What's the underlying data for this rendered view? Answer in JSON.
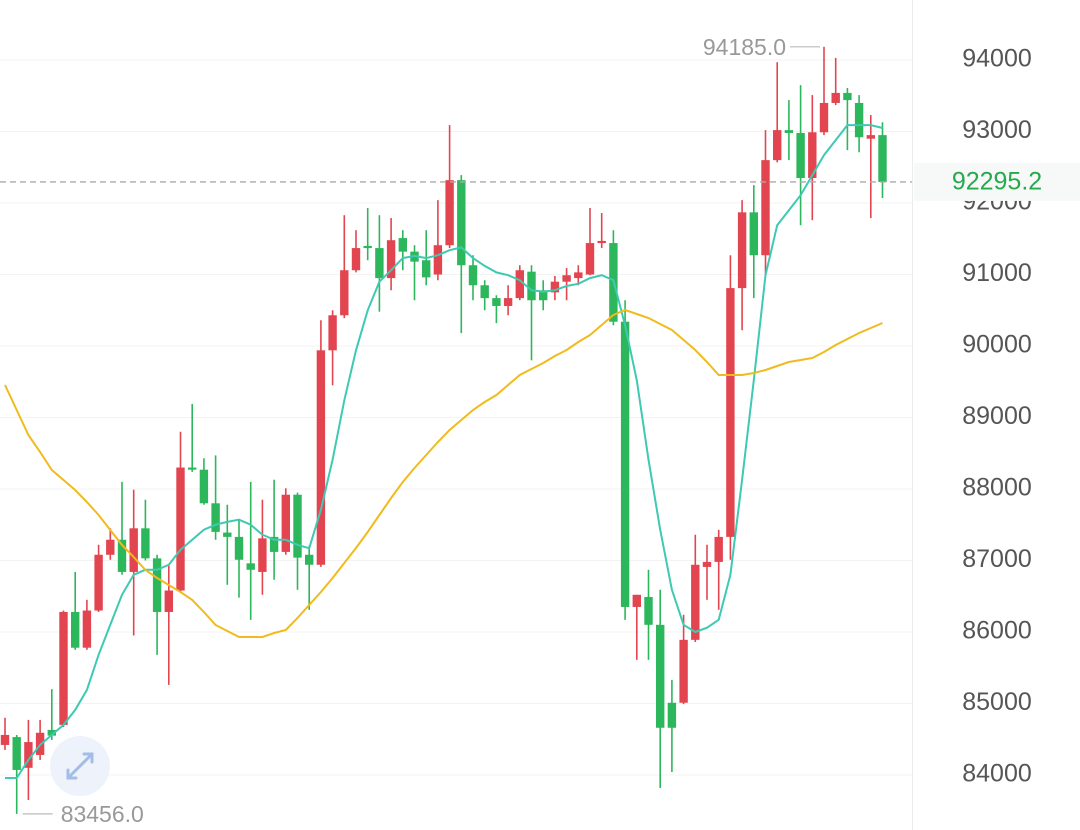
{
  "chart_data": {
    "type": "candlestick",
    "ylim": [
      83230,
      94840
    ],
    "yticks": [
      84000,
      85000,
      86000,
      87000,
      88000,
      89000,
      90000,
      91000,
      92000,
      93000,
      94000
    ],
    "grid": true,
    "up_color": "#e2454f",
    "down_color": "#2db75c",
    "open": [
      84420,
      84530,
      84100,
      84280,
      84630,
      84700,
      86280,
      85780,
      86300,
      87080,
      87290,
      86840,
      87450,
      87030,
      86280,
      86580,
      88300,
      88270,
      87800,
      87390,
      87330,
      86960,
      86840,
      87330,
      87120,
      87920,
      87080,
      86940,
      89940,
      90430,
      91060,
      91400,
      91370,
      90950,
      91510,
      91320,
      91200,
      91000,
      91410,
      92320,
      91130,
      90850,
      90670,
      90560,
      90670,
      91040,
      90780,
      90750,
      90900,
      90950,
      91000,
      91440,
      91440,
      90340,
      86350,
      86490,
      86100,
      85010,
      85010,
      85890,
      86910,
      86980,
      87330,
      90810,
      91870,
      91270,
      92600,
      93020,
      92980,
      92350,
      92990,
      93400,
      93540,
      93400,
      92900,
      92950
    ],
    "high": [
      84800,
      84560,
      84770,
      84770,
      85200,
      86300,
      86840,
      86450,
      87220,
      87450,
      88100,
      87990,
      87850,
      87080,
      86930,
      88800,
      89190,
      88430,
      88470,
      87780,
      87570,
      88100,
      87850,
      88130,
      88010,
      87950,
      87210,
      90360,
      90500,
      91830,
      91620,
      91930,
      91830,
      91790,
      91620,
      91410,
      91620,
      92040,
      93090,
      92390,
      91270,
      90920,
      90710,
      90850,
      91130,
      91130,
      90920,
      90980,
      91090,
      91130,
      91930,
      91860,
      91620,
      90640,
      86520,
      86870,
      86590,
      85330,
      86240,
      87360,
      87220,
      87430,
      91270,
      92040,
      92250,
      93020,
      93970,
      93440,
      93650,
      93510,
      94185,
      94030,
      93610,
      93510,
      93230,
      93130
    ],
    "low": [
      84350,
      83456,
      83650,
      84210,
      84490,
      84670,
      85750,
      85750,
      86280,
      87010,
      86800,
      85950,
      87000,
      85680,
      85260,
      86560,
      88240,
      87780,
      87290,
      86660,
      86480,
      86170,
      86520,
      86730,
      87080,
      86590,
      86310,
      86910,
      89450,
      90390,
      91030,
      91200,
      90480,
      90780,
      91060,
      90640,
      90850,
      90920,
      91370,
      90180,
      90640,
      90500,
      90320,
      90430,
      90640,
      89800,
      90500,
      90640,
      90640,
      90850,
      90990,
      91370,
      90290,
      86170,
      85610,
      85610,
      83820,
      84040,
      84990,
      85860,
      86450,
      86310,
      87010,
      90220,
      90670,
      91000,
      92570,
      92600,
      91690,
      91760,
      92950,
      93370,
      92740,
      92710,
      91790,
      92070
    ],
    "close": [
      84560,
      84070,
      84460,
      84590,
      84550,
      86280,
      85780,
      86300,
      87080,
      87290,
      86840,
      87450,
      87030,
      86280,
      86580,
      88300,
      88270,
      87800,
      87400,
      87330,
      87010,
      86870,
      87310,
      87120,
      87920,
      87040,
      86940,
      89940,
      90430,
      91060,
      91370,
      91370,
      90950,
      91480,
      91320,
      91180,
      90960,
      91410,
      92320,
      91130,
      90850,
      90670,
      90560,
      90670,
      91060,
      90640,
      90640,
      90900,
      90990,
      91030,
      91440,
      91470,
      90340,
      86350,
      86520,
      86100,
      84660,
      84660,
      85890,
      86940,
      86980,
      87330,
      90810,
      91870,
      91270,
      92600,
      93020,
      92980,
      92350,
      92990,
      93400,
      93540,
      93440,
      92920,
      92950,
      92295.2
    ],
    "lines": [
      {
        "color": "#3ec9b2",
        "values": [
          83958,
          83958,
          84210,
          84420,
          84560,
          84700,
          84910,
          85190,
          85680,
          86100,
          86520,
          86800,
          86870,
          86870,
          86940,
          87150,
          87290,
          87430,
          87500,
          87540,
          87570,
          87500,
          87360,
          87290,
          87290,
          87220,
          87170,
          87710,
          88410,
          89240,
          89940,
          90500,
          90900,
          91060,
          91230,
          91260,
          91230,
          91270,
          91340,
          91380,
          91230,
          91120,
          91030,
          90990,
          90920,
          90780,
          90760,
          90780,
          90840,
          90870,
          90950,
          90990,
          90920,
          90290,
          89520,
          88410,
          87430,
          86590,
          86100,
          86000,
          86060,
          86170,
          86800,
          88130,
          89520,
          90990,
          91690,
          91900,
          92110,
          92390,
          92670,
          92880,
          93090,
          93090,
          93090,
          93050
        ]
      },
      {
        "color": "#f0bb1c",
        "values": [
          89455,
          89105,
          88755,
          88517,
          88266,
          88126,
          87986,
          87818,
          87636,
          87427,
          87217,
          87049,
          86867,
          86755,
          86657,
          86559,
          86448,
          86280,
          86098,
          86014,
          85930,
          85930,
          85930,
          85986,
          86028,
          86196,
          86378,
          86559,
          86755,
          86965,
          87175,
          87399,
          87636,
          87874,
          88098,
          88294,
          88476,
          88657,
          88825,
          88965,
          89105,
          89217,
          89315,
          89455,
          89594,
          89678,
          89762,
          89860,
          89944,
          90056,
          90154,
          90294,
          90434,
          90504,
          90448,
          90392,
          90308,
          90224,
          90084,
          89944,
          89776,
          89594,
          89594,
          89594,
          89622,
          89664,
          89720,
          89776,
          89804,
          89832,
          89916,
          90014,
          90098,
          90182,
          90252,
          90322
        ]
      }
    ],
    "high_marker": {
      "value": 94185,
      "label": "94185.0"
    },
    "low_marker": {
      "value": 83456,
      "label": "83456.0"
    },
    "last_price": {
      "value": 92295.2,
      "label": "92295.2"
    },
    "last_price_color": "#27a94e"
  }
}
